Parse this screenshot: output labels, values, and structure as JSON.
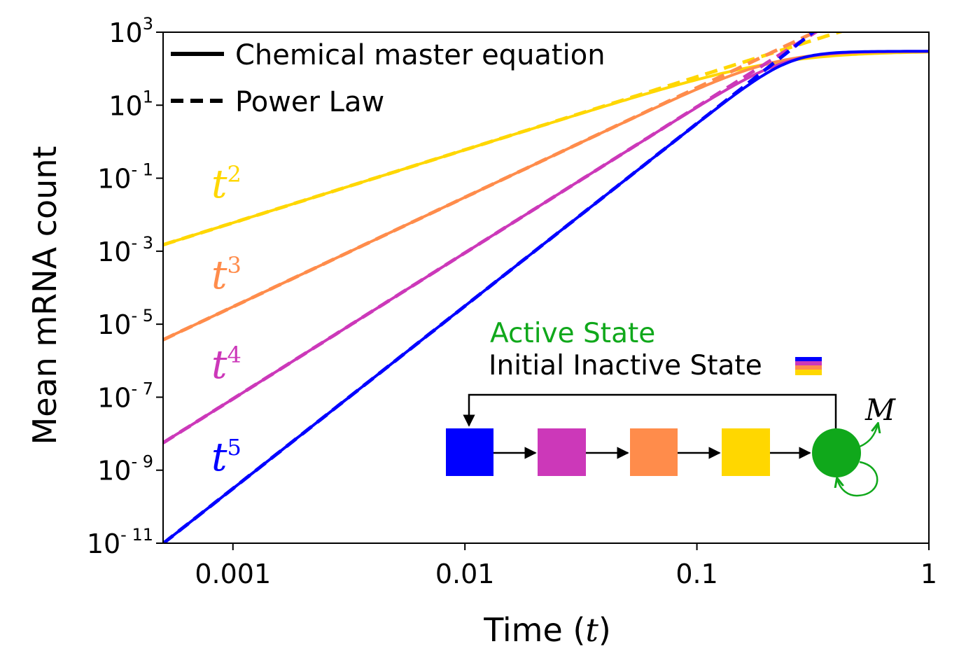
{
  "chart_data": {
    "type": "line",
    "xscale": "log",
    "yscale": "log",
    "xlim": [
      0.0005,
      1
    ],
    "ylim": [
      1e-11,
      1000
    ],
    "xlabel_text": "Time (",
    "xlabel_var": "t",
    "xlabel_close": ")",
    "ylabel": "Mean mRNA count",
    "x_ticks": [
      {
        "value": 0.001,
        "label": "0.001"
      },
      {
        "value": 0.01,
        "label": "0.01"
      },
      {
        "value": 0.1,
        "label": "0.1"
      },
      {
        "value": 1,
        "label": "1"
      }
    ],
    "y_ticks": [
      {
        "value": 1000,
        "base": "10",
        "exp": "3"
      },
      {
        "value": 10,
        "base": "10",
        "exp": "1"
      },
      {
        "value": 0.1,
        "base": "10",
        "exp": "- 1"
      },
      {
        "value": 0.001,
        "base": "10",
        "exp": "- 3"
      },
      {
        "value": 1e-05,
        "base": "10",
        "exp": "- 5"
      },
      {
        "value": 1e-07,
        "base": "10",
        "exp": "- 7"
      },
      {
        "value": 1e-09,
        "base": "10",
        "exp": "- 9"
      },
      {
        "value": 1e-11,
        "base": "10",
        "exp": "- 11"
      }
    ],
    "legend": {
      "placement": "top-left",
      "entries": [
        {
          "label": "Chemical master equation",
          "style": "solid"
        },
        {
          "label": "Power Law",
          "style": "dashed"
        }
      ]
    },
    "series": [
      {
        "key": "t2",
        "color": "#FFD700",
        "power": 2,
        "coef": 6000,
        "label_base": "t",
        "label_exp": "2"
      },
      {
        "key": "t3",
        "color": "#FF8C4B",
        "power": 3,
        "coef": 30000,
        "label_base": "t",
        "label_exp": "3"
      },
      {
        "key": "t4",
        "color": "#CC38B9",
        "power": 4,
        "coef": 90000,
        "label_base": "t",
        "label_exp": "4"
      },
      {
        "key": "t5",
        "color": "#0000FF",
        "power": 5,
        "coef": 315000,
        "label_base": "t",
        "label_exp": "5"
      }
    ],
    "saturation": 300,
    "grid": false
  },
  "inset": {
    "active_state_label": "Active State",
    "initial_inactive_label": "Initial Inactive State",
    "output_label": "M",
    "active_color": "#10A81B",
    "state_colors": [
      "#0000FF",
      "#CC38B9",
      "#FF8C4B",
      "#FFD700"
    ]
  }
}
